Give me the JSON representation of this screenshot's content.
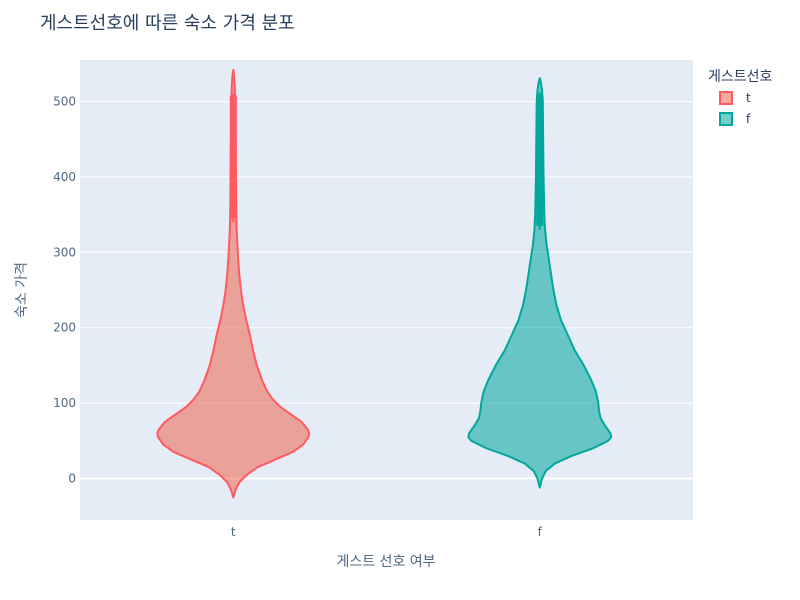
{
  "chart_data": {
    "type": "violin",
    "title": "게스트선호에 따른 숙소 가격 분포",
    "xlabel": "게스트 선호 여부",
    "ylabel": "숙소 가격",
    "categories": [
      "t",
      "f"
    ],
    "ylim": [
      -55,
      555
    ],
    "yticks": [
      0,
      100,
      200,
      300,
      400,
      500
    ],
    "grid": true,
    "legend": {
      "title": "게스트선호",
      "position": "top-right"
    },
    "series": [
      {
        "name": "t",
        "color": "#EF553B",
        "fill": "rgba(239,85,59,0.5)",
        "outline": "#FF5A5F",
        "box": {
          "q1": 345,
          "q3": 508,
          "whisker_low": 340,
          "whisker_high": 510
        },
        "density": [
          [
            -25,
            0.0
          ],
          [
            -15,
            0.03
          ],
          [
            -5,
            0.08
          ],
          [
            5,
            0.18
          ],
          [
            15,
            0.32
          ],
          [
            25,
            0.55
          ],
          [
            35,
            0.78
          ],
          [
            45,
            0.92
          ],
          [
            55,
            0.99
          ],
          [
            60,
            1.0
          ],
          [
            65,
            0.98
          ],
          [
            75,
            0.9
          ],
          [
            85,
            0.76
          ],
          [
            95,
            0.62
          ],
          [
            105,
            0.52
          ],
          [
            115,
            0.45
          ],
          [
            130,
            0.38
          ],
          [
            150,
            0.31
          ],
          [
            170,
            0.26
          ],
          [
            190,
            0.22
          ],
          [
            210,
            0.17
          ],
          [
            230,
            0.13
          ],
          [
            250,
            0.1
          ],
          [
            270,
            0.08
          ],
          [
            290,
            0.065
          ],
          [
            310,
            0.055
          ],
          [
            330,
            0.045
          ],
          [
            350,
            0.04
          ],
          [
            400,
            0.035
          ],
          [
            450,
            0.03
          ],
          [
            500,
            0.025
          ],
          [
            520,
            0.02
          ],
          [
            535,
            0.01
          ],
          [
            542,
            0.0
          ]
        ]
      },
      {
        "name": "f",
        "color": "#00A79D",
        "fill": "rgba(0,167,157,0.55)",
        "outline": "#00A79D",
        "box": {
          "q1": 335,
          "q3": 510,
          "whisker_low": 330,
          "whisker_high": 512
        },
        "density": [
          [
            -12,
            0.0
          ],
          [
            0,
            0.03
          ],
          [
            10,
            0.08
          ],
          [
            20,
            0.2
          ],
          [
            30,
            0.42
          ],
          [
            40,
            0.7
          ],
          [
            50,
            0.9
          ],
          [
            55,
            0.94
          ],
          [
            60,
            0.93
          ],
          [
            70,
            0.86
          ],
          [
            80,
            0.8
          ],
          [
            90,
            0.78
          ],
          [
            100,
            0.77
          ],
          [
            115,
            0.74
          ],
          [
            130,
            0.68
          ],
          [
            150,
            0.58
          ],
          [
            170,
            0.46
          ],
          [
            190,
            0.37
          ],
          [
            210,
            0.28
          ],
          [
            230,
            0.22
          ],
          [
            250,
            0.18
          ],
          [
            270,
            0.15
          ],
          [
            290,
            0.12
          ],
          [
            310,
            0.09
          ],
          [
            330,
            0.07
          ],
          [
            350,
            0.06
          ],
          [
            400,
            0.05
          ],
          [
            450,
            0.045
          ],
          [
            500,
            0.04
          ],
          [
            515,
            0.03
          ],
          [
            525,
            0.015
          ],
          [
            531,
            0.0
          ]
        ]
      }
    ]
  }
}
